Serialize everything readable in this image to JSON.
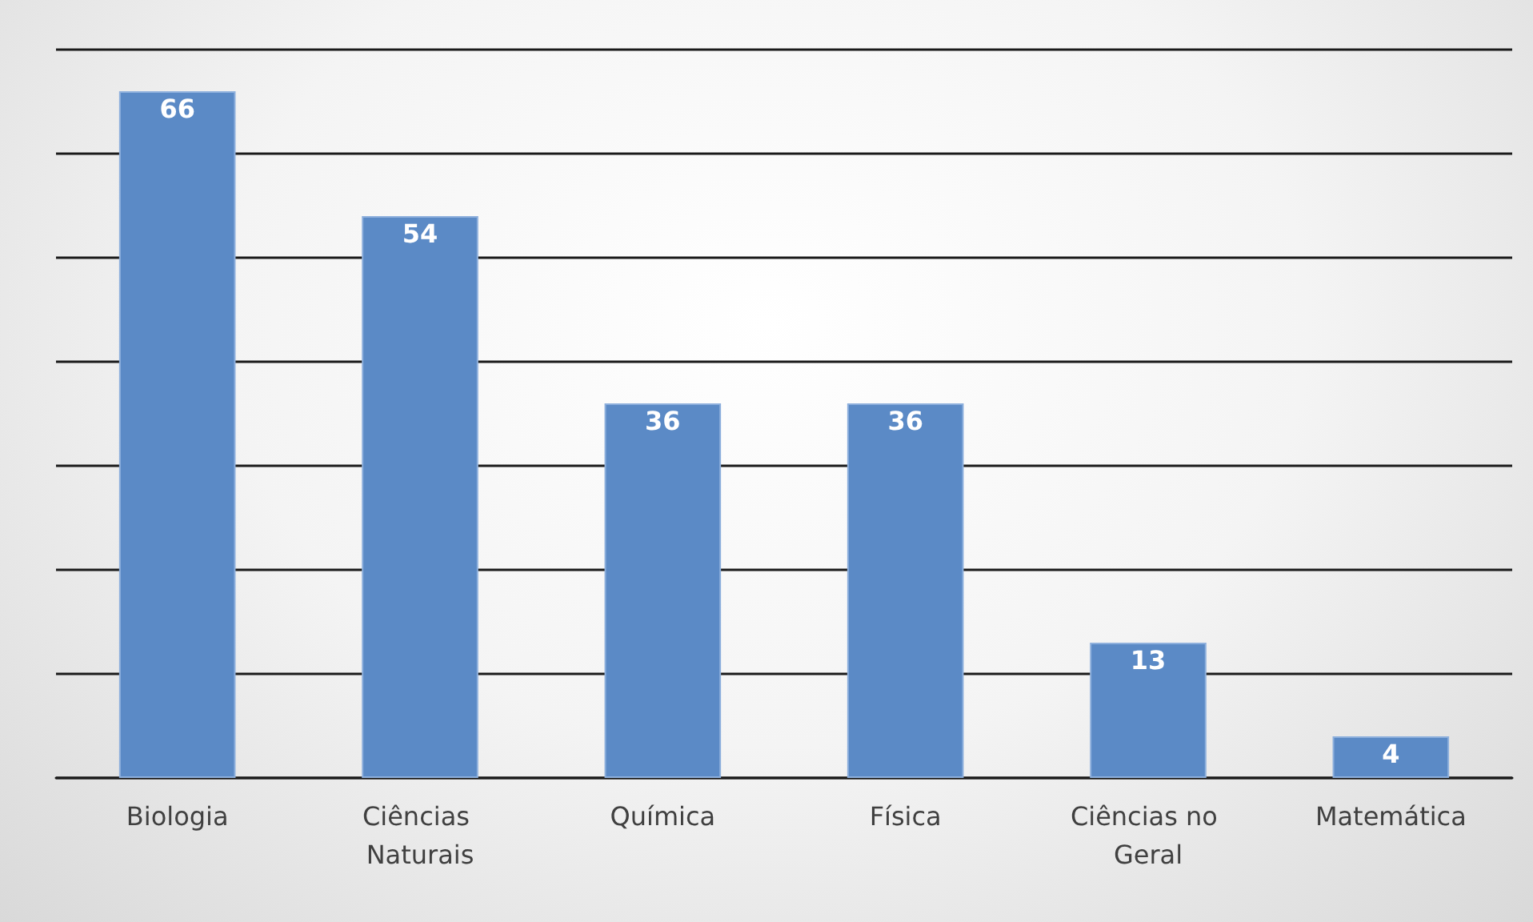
{
  "chart_data": {
    "type": "bar",
    "categories": [
      "Biologia",
      "Ciências Naturais",
      "Química",
      "Física",
      "Ciências no Geral",
      "Matemática"
    ],
    "values": [
      66,
      54,
      36,
      36,
      13,
      4
    ],
    "color": "#5b8ac6",
    "ylim": [
      0,
      70
    ],
    "yticks": [
      0,
      10,
      20,
      30,
      40,
      50,
      60,
      70
    ],
    "grid": "y",
    "tick_labels": "x",
    "data_labels": true
  }
}
